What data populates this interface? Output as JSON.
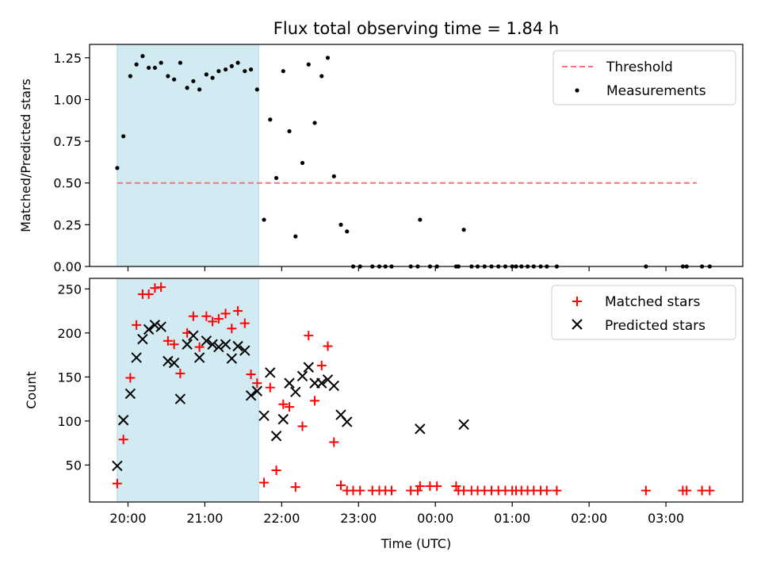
{
  "chart_data": [
    {
      "type": "scatter",
      "title": "Flux total observing time = 1.84 h",
      "ylabel": "Matched/Predicted stars",
      "xlabel": "",
      "x_unit": "hours since 19:00 UTC",
      "xlim": [
        19.5,
        28.0
      ],
      "ylim": [
        0.0,
        1.33
      ],
      "yticks": [
        0.0,
        0.25,
        0.5,
        0.75,
        1.0,
        1.25
      ],
      "ytick_labels": [
        "0.00",
        "0.25",
        "0.50",
        "0.75",
        "1.00",
        "1.25"
      ],
      "shaded_region": {
        "x": [
          19.86,
          21.7
        ],
        "color": "#add8e6"
      },
      "threshold": {
        "name": "Threshold",
        "y": 0.5,
        "x": [
          19.86,
          27.4
        ],
        "color": "#ff7070"
      },
      "series": [
        {
          "name": "Measurements",
          "marker": "dot",
          "color": "#000000",
          "points": [
            [
              19.86,
              0.59
            ],
            [
              19.94,
              0.78
            ],
            [
              20.03,
              1.14
            ],
            [
              20.11,
              1.21
            ],
            [
              20.19,
              1.26
            ],
            [
              20.27,
              1.19
            ],
            [
              20.35,
              1.19
            ],
            [
              20.43,
              1.22
            ],
            [
              20.52,
              1.14
            ],
            [
              20.6,
              1.12
            ],
            [
              20.68,
              1.22
            ],
            [
              20.77,
              1.07
            ],
            [
              20.85,
              1.11
            ],
            [
              20.93,
              1.06
            ],
            [
              21.02,
              1.15
            ],
            [
              21.1,
              1.13
            ],
            [
              21.18,
              1.17
            ],
            [
              21.27,
              1.18
            ],
            [
              21.35,
              1.2
            ],
            [
              21.43,
              1.22
            ],
            [
              21.52,
              1.17
            ],
            [
              21.6,
              1.18
            ],
            [
              21.68,
              1.06
            ],
            [
              21.77,
              0.28
            ],
            [
              21.85,
              0.88
            ],
            [
              21.93,
              0.53
            ],
            [
              22.02,
              1.17
            ],
            [
              22.1,
              0.81
            ],
            [
              22.18,
              0.18
            ],
            [
              22.27,
              0.62
            ],
            [
              22.35,
              1.21
            ],
            [
              22.43,
              0.86
            ],
            [
              22.52,
              1.14
            ],
            [
              22.6,
              1.25
            ],
            [
              22.68,
              0.54
            ],
            [
              22.77,
              0.25
            ],
            [
              22.85,
              0.21
            ],
            [
              22.93,
              0.0
            ],
            [
              23.02,
              0.0
            ],
            [
              23.18,
              0.0
            ],
            [
              23.27,
              0.0
            ],
            [
              23.35,
              0.0
            ],
            [
              23.43,
              0.0
            ],
            [
              23.68,
              0.0
            ],
            [
              23.77,
              0.0
            ],
            [
              23.8,
              0.28
            ],
            [
              23.93,
              0.0
            ],
            [
              24.02,
              0.0
            ],
            [
              24.27,
              0.0
            ],
            [
              24.3,
              0.0
            ],
            [
              24.37,
              0.22
            ],
            [
              24.47,
              0.0
            ],
            [
              24.55,
              0.0
            ],
            [
              24.64,
              0.0
            ],
            [
              24.73,
              0.0
            ],
            [
              24.82,
              0.0
            ],
            [
              24.91,
              0.0
            ],
            [
              25.0,
              0.0
            ],
            [
              25.05,
              0.0
            ],
            [
              25.12,
              0.0
            ],
            [
              25.2,
              0.0
            ],
            [
              25.28,
              0.0
            ],
            [
              25.37,
              0.0
            ],
            [
              25.45,
              0.0
            ],
            [
              25.58,
              0.0
            ],
            [
              26.74,
              0.0
            ],
            [
              27.22,
              0.0
            ],
            [
              27.27,
              0.0
            ],
            [
              27.47,
              0.0
            ],
            [
              27.57,
              0.0
            ]
          ]
        }
      ],
      "legend": {
        "position": "top-right",
        "entries": [
          "Threshold",
          "Measurements"
        ]
      },
      "grid": false
    },
    {
      "type": "scatter",
      "title": "",
      "ylabel": "Count",
      "xlabel": "Time (UTC)",
      "x_unit": "hours since 19:00 UTC",
      "xlim": [
        19.5,
        28.0
      ],
      "ylim": [
        8,
        262
      ],
      "yticks": [
        50,
        100,
        150,
        200,
        250
      ],
      "ytick_labels": [
        "50",
        "100",
        "150",
        "200",
        "250"
      ],
      "xticks": [
        20,
        21,
        22,
        23,
        24,
        25,
        26,
        27
      ],
      "xtick_labels": [
        "20:00",
        "21:00",
        "22:00",
        "23:00",
        "00:00",
        "01:00",
        "02:00",
        "03:00"
      ],
      "shaded_region": {
        "x": [
          19.86,
          21.7
        ],
        "color": "#add8e6"
      },
      "series": [
        {
          "name": "Matched stars",
          "marker": "plus",
          "color": "#ff0000",
          "points": [
            [
              19.86,
              29
            ],
            [
              19.94,
              79
            ],
            [
              20.03,
              149
            ],
            [
              20.11,
              209
            ],
            [
              20.19,
              244
            ],
            [
              20.27,
              244
            ],
            [
              20.35,
              251
            ],
            [
              20.43,
              252
            ],
            [
              20.52,
              191
            ],
            [
              20.6,
              187
            ],
            [
              20.68,
              154
            ],
            [
              20.77,
              200
            ],
            [
              20.85,
              219
            ],
            [
              20.93,
              184
            ],
            [
              21.02,
              219
            ],
            [
              21.1,
              213
            ],
            [
              21.18,
              216
            ],
            [
              21.27,
              222
            ],
            [
              21.35,
              205
            ],
            [
              21.43,
              225
            ],
            [
              21.52,
              211
            ],
            [
              21.6,
              153
            ],
            [
              21.68,
              143
            ],
            [
              21.77,
              30
            ],
            [
              21.85,
              138
            ],
            [
              21.93,
              44
            ],
            [
              22.02,
              119
            ],
            [
              22.1,
              116
            ],
            [
              22.18,
              25
            ],
            [
              22.27,
              94
            ],
            [
              22.35,
              197
            ],
            [
              22.43,
              123
            ],
            [
              22.52,
              163
            ],
            [
              22.6,
              185
            ],
            [
              22.68,
              76
            ],
            [
              22.77,
              27
            ],
            [
              22.85,
              21
            ],
            [
              22.93,
              21
            ],
            [
              23.02,
              21
            ],
            [
              23.18,
              21
            ],
            [
              23.27,
              21
            ],
            [
              23.35,
              21
            ],
            [
              23.43,
              21
            ],
            [
              23.68,
              21
            ],
            [
              23.77,
              21
            ],
            [
              23.8,
              26
            ],
            [
              23.93,
              26
            ],
            [
              24.02,
              26
            ],
            [
              24.27,
              26
            ],
            [
              24.3,
              21
            ],
            [
              24.37,
              21
            ],
            [
              24.47,
              21
            ],
            [
              24.55,
              21
            ],
            [
              24.64,
              21
            ],
            [
              24.73,
              21
            ],
            [
              24.82,
              21
            ],
            [
              24.91,
              21
            ],
            [
              25.0,
              21
            ],
            [
              25.05,
              21
            ],
            [
              25.12,
              21
            ],
            [
              25.2,
              21
            ],
            [
              25.28,
              21
            ],
            [
              25.37,
              21
            ],
            [
              25.45,
              21
            ],
            [
              25.58,
              21
            ],
            [
              26.74,
              21
            ],
            [
              27.22,
              21
            ],
            [
              27.27,
              21
            ],
            [
              27.47,
              21
            ],
            [
              27.57,
              21
            ]
          ]
        },
        {
          "name": "Predicted stars",
          "marker": "x",
          "color": "#000000",
          "points": [
            [
              19.86,
              49
            ],
            [
              19.94,
              101
            ],
            [
              20.03,
              131
            ],
            [
              20.11,
              172
            ],
            [
              20.19,
              193
            ],
            [
              20.27,
              204
            ],
            [
              20.35,
              209
            ],
            [
              20.43,
              207
            ],
            [
              20.52,
              168
            ],
            [
              20.6,
              166
            ],
            [
              20.68,
              125
            ],
            [
              20.77,
              187
            ],
            [
              20.85,
              197
            ],
            [
              20.93,
              172
            ],
            [
              21.02,
              191
            ],
            [
              21.1,
              187
            ],
            [
              21.18,
              184
            ],
            [
              21.27,
              187
            ],
            [
              21.35,
              171
            ],
            [
              21.43,
              185
            ],
            [
              21.52,
              180
            ],
            [
              21.6,
              129
            ],
            [
              21.68,
              134
            ],
            [
              21.77,
              106
            ],
            [
              21.85,
              155
            ],
            [
              21.93,
              83
            ],
            [
              22.02,
              102
            ],
            [
              22.1,
              143
            ],
            [
              22.18,
              133
            ],
            [
              22.27,
              151
            ],
            [
              22.35,
              161
            ],
            [
              22.43,
              143
            ],
            [
              22.52,
              143
            ],
            [
              22.6,
              147
            ],
            [
              22.68,
              140
            ],
            [
              22.77,
              107
            ],
            [
              22.85,
              99
            ],
            [
              23.8,
              91
            ],
            [
              24.37,
              96
            ]
          ]
        }
      ],
      "legend": {
        "position": "top-right",
        "entries": [
          "Matched stars",
          "Predicted stars"
        ]
      },
      "grid": false
    }
  ]
}
